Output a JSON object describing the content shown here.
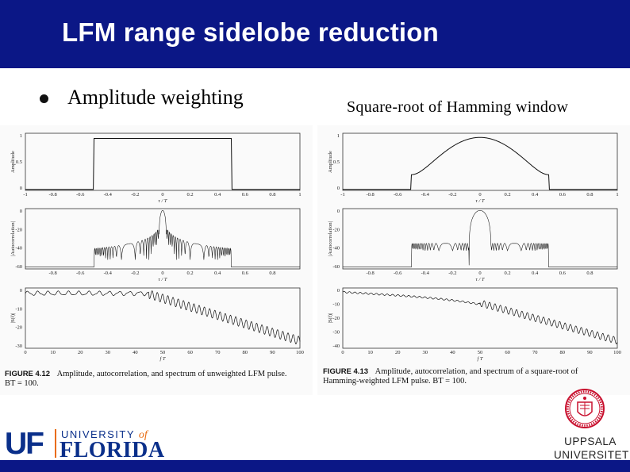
{
  "slide": {
    "title": "LFM range sidelobe reduction",
    "bullet": "Amplitude weighting",
    "right_title": "Square-root of Hamming window"
  },
  "figure_left": {
    "caption_label": "FIGURE 4.12",
    "caption_text": "Amplitude, autocorrelation, and spectrum of unweighted LFM pulse.",
    "caption_line2": "BT = 100.",
    "amp_ylabel": "Amplitude",
    "amp_yticks": [
      "0",
      "0.5",
      "1"
    ],
    "amp_xticks": [
      "-1",
      "-0.8",
      "-0.6",
      "-0.4",
      "-0.2",
      "0",
      "0.2",
      "0.4",
      "0.6",
      "0.8",
      "1"
    ],
    "amp_xlabel": "τ / T",
    "ac_ylabel": "|Autocorrelation|",
    "ac_yticks": [
      "0",
      "-20",
      "-40",
      "-60"
    ],
    "ac_xticks": [
      "-0.8",
      "-0.6",
      "-0.4",
      "-0.2",
      "0",
      "0.2",
      "0.4",
      "0.6",
      "0.8"
    ],
    "ac_xlabel": "τ / T",
    "sp_ylabel": "|S(f)|",
    "sp_yticks": [
      "0",
      "-10",
      "-20",
      "-30"
    ],
    "sp_xticks": [
      "0",
      "10",
      "20",
      "30",
      "40",
      "50",
      "60",
      "70",
      "80",
      "90",
      "100"
    ],
    "sp_xlabel": "f T"
  },
  "figure_right": {
    "caption_label": "FIGURE 4.13",
    "caption_text": "Amplitude, autocorrelation, and spectrum of a square-root of",
    "caption_line2": "Hamming-weighted LFM pulse. BT = 100.",
    "amp_ylabel": "Amplitude",
    "amp_yticks": [
      "0",
      "0.5",
      "1"
    ],
    "amp_xticks": [
      "-1",
      "-0.8",
      "-0.6",
      "-0.4",
      "-0.2",
      "0",
      "0.2",
      "0.4",
      "0.6",
      "0.8",
      "1"
    ],
    "amp_xlabel": "τ / T",
    "ac_ylabel": "|Autocorrelation|",
    "ac_yticks": [
      "0",
      "-20",
      "-40",
      "-60"
    ],
    "ac_xticks": [
      "-0.8",
      "-0.6",
      "-0.4",
      "-0.2",
      "0",
      "0.2",
      "0.4",
      "0.6",
      "0.8"
    ],
    "ac_xlabel": "τ / T",
    "sp_ylabel": "|S(f)|",
    "sp_yticks": [
      "0",
      "-10",
      "-20",
      "-30",
      "-40"
    ],
    "sp_xticks": [
      "0",
      "10",
      "20",
      "30",
      "40",
      "50",
      "60",
      "70",
      "80",
      "90",
      "100"
    ],
    "sp_xlabel": "f T"
  },
  "logos": {
    "uf_mark": "UF",
    "uf_university": "UNIVERSITY",
    "uf_of": "of",
    "uf_florida": "FLORIDA",
    "uu_line1": "UPPSALA",
    "uu_line2": "UNIVERSITET"
  },
  "colors": {
    "header": "#0b1786",
    "uf_blue": "#0a2f8a",
    "uf_orange": "#e96c12",
    "uu_red": "#c8102e"
  }
}
